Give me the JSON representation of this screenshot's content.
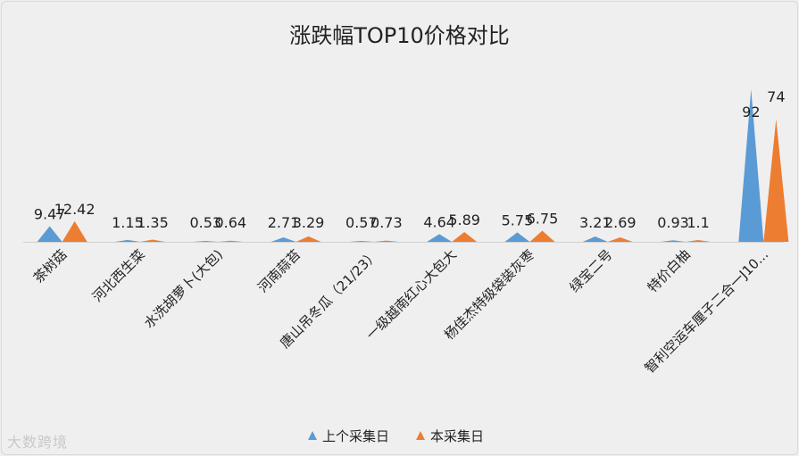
{
  "watermark": "大数跨境",
  "chart_data": {
    "type": "area",
    "title": "涨跌幅TOP10价格对比",
    "categories": [
      "茶树菇",
      "河北西生菜",
      "水洗胡萝卜(大包)",
      "河南蒜苔",
      "唐山吊冬瓜（21/23）",
      "一级越南红心大包大",
      "杨佳杰特级袋装灰枣",
      "绿宝二号",
      "特价白柚",
      "智利空运车厘子二合一J10..."
    ],
    "series": [
      {
        "name": "上个采集日",
        "values": [
          9.47,
          1.15,
          0.53,
          2.71,
          0.57,
          4.64,
          5.75,
          3.21,
          0.93,
          92
        ],
        "color": "#5b9bd5"
      },
      {
        "name": "本采集日",
        "values": [
          12.42,
          1.35,
          0.64,
          3.29,
          0.73,
          5.89,
          6.75,
          2.69,
          1.1,
          74
        ],
        "color": "#ed7d31"
      }
    ],
    "ylim": [
      0,
      92
    ],
    "legend_position": "bottom",
    "grid": false
  }
}
